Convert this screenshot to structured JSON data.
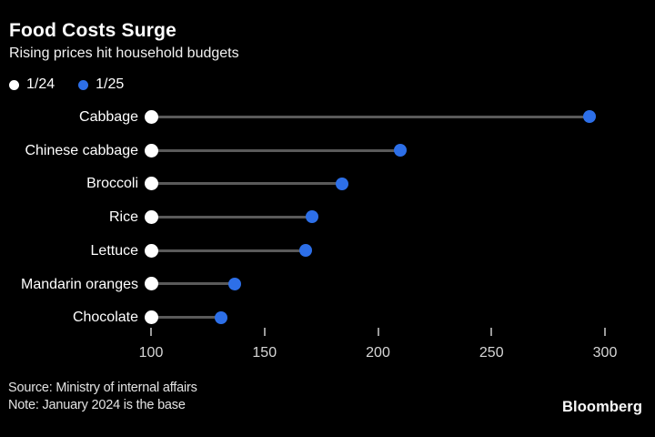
{
  "chart_data": {
    "type": "scatter",
    "subtype": "dumbbell-dot-plot",
    "orientation": "horizontal",
    "title": "Food Costs Surge",
    "subtitle": "Rising prices hit household budgets",
    "categories": [
      "Cabbage",
      "Chinese cabbage",
      "Broccoli",
      "Rice",
      "Lettuce",
      "Mandarin oranges",
      "Chocolate"
    ],
    "series": [
      {
        "name": "1/24",
        "color": "#ffffff",
        "values": [
          100,
          100,
          100,
          100,
          100,
          100,
          100
        ]
      },
      {
        "name": "1/25",
        "color": "#2d6fe8",
        "values": [
          293,
          210,
          184,
          171,
          168,
          137,
          131
        ]
      }
    ],
    "xlabel": "",
    "ylabel": "",
    "x_ticks": [
      100,
      150,
      200,
      250,
      300
    ],
    "xlim": [
      100,
      322
    ],
    "grid": false,
    "legend_position": "top-left",
    "baseline_value": 100
  },
  "footer": {
    "source": "Source: Ministry of internal affairs",
    "note": "Note: January 2024 is the base",
    "brand": "Bloomberg"
  },
  "colors": {
    "background": "#000000",
    "title_text": "#ffffff",
    "subtitle_text": "#f2f2f2",
    "dot_white": "#ffffff",
    "dot_blue": "#2d6fe8",
    "connector": "#5a5a5a",
    "tick_mark": "#9a9a9a",
    "tick_label": "#d6d6d6",
    "footer_text": "#e3e3e3"
  }
}
